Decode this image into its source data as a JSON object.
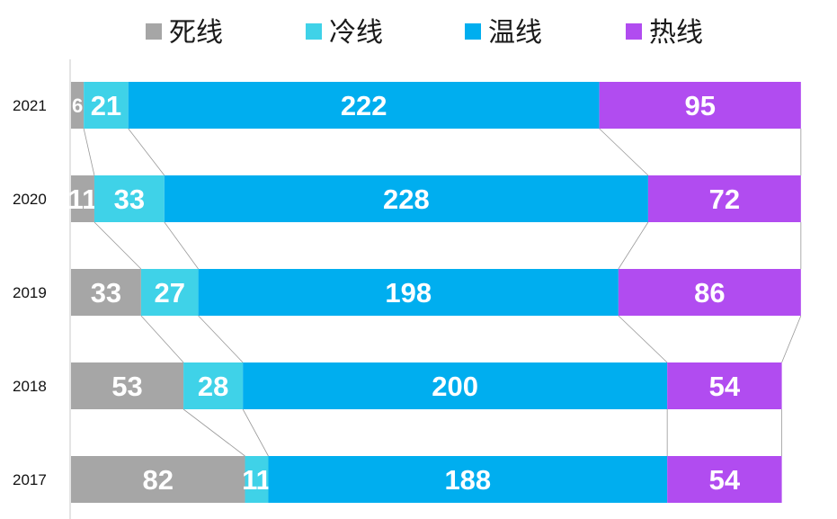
{
  "chart_data": {
    "type": "bar",
    "orientation": "horizontal",
    "stacked": true,
    "categories": [
      "2021",
      "2020",
      "2019",
      "2018",
      "2017"
    ],
    "series": [
      {
        "name": "死线",
        "values": [
          6,
          11,
          33,
          53,
          82
        ],
        "color": "#a6a6a6"
      },
      {
        "name": "冷线",
        "values": [
          21,
          33,
          27,
          28,
          11
        ],
        "color": "#3fd2e8"
      },
      {
        "name": "温线",
        "values": [
          222,
          228,
          198,
          200,
          188
        ],
        "color": "#00aeef"
      },
      {
        "name": "热线",
        "values": [
          95,
          72,
          86,
          54,
          54
        ],
        "color": "#b14cf0"
      }
    ],
    "legend": "top",
    "grid": false,
    "series_connector_lines": true
  }
}
